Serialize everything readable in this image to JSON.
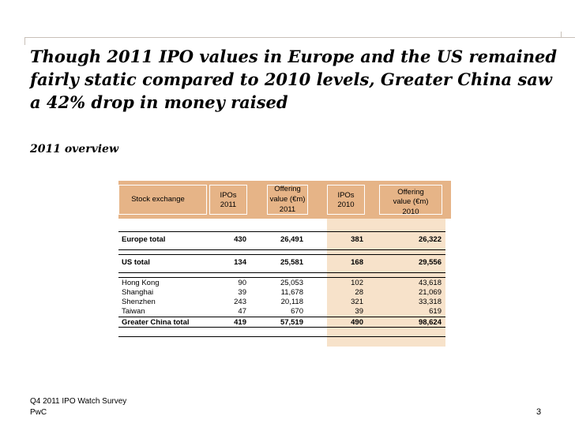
{
  "title": "Though 2011 IPO values in Europe and the US remained fairly static compared to 2010 levels, Greater China saw a 42% drop in money raised",
  "subtitle": "2011 overview",
  "table": {
    "headers": {
      "stock_exchange": "Stock exchange",
      "ipos_2011_a": "IPOs",
      "ipos_2011_b": "2011",
      "value_2011_a": "Offering",
      "value_2011_b": "value (€m)",
      "value_2011_c": "2011",
      "ipos_2010_a": "IPOs",
      "ipos_2010_b": "2010",
      "value_2010_a": "Offering",
      "value_2010_b": "value (€m)",
      "value_2010_c": "2010"
    },
    "rows": [
      {
        "name": "Europe total",
        "ipos2011": "430",
        "value2011": "26,491",
        "ipos2010": "381",
        "value2010": "26,322"
      },
      {
        "name": "US total",
        "ipos2011": "134",
        "value2011": "25,581",
        "ipos2010": "168",
        "value2010": "29,556"
      },
      {
        "name": "Hong Kong",
        "ipos2011": "90",
        "value2011": "25,053",
        "ipos2010": "102",
        "value2010": "43,618"
      },
      {
        "name": "Shanghai",
        "ipos2011": "39",
        "value2011": "11,678",
        "ipos2010": "28",
        "value2010": "21,069"
      },
      {
        "name": "Shenzhen",
        "ipos2011": "243",
        "value2011": "20,118",
        "ipos2010": "321",
        "value2010": "33,318"
      },
      {
        "name": "Taiwan",
        "ipos2011": "47",
        "value2011": "670",
        "ipos2010": "39",
        "value2010": "619"
      },
      {
        "name": "Greater China total",
        "ipos2011": "419",
        "value2011": "57,519",
        "ipos2010": "490",
        "value2010": "98,624"
      }
    ]
  },
  "footer": {
    "survey": "Q4 2011 IPO Watch Survey",
    "company": "PwC",
    "page": "3"
  }
}
